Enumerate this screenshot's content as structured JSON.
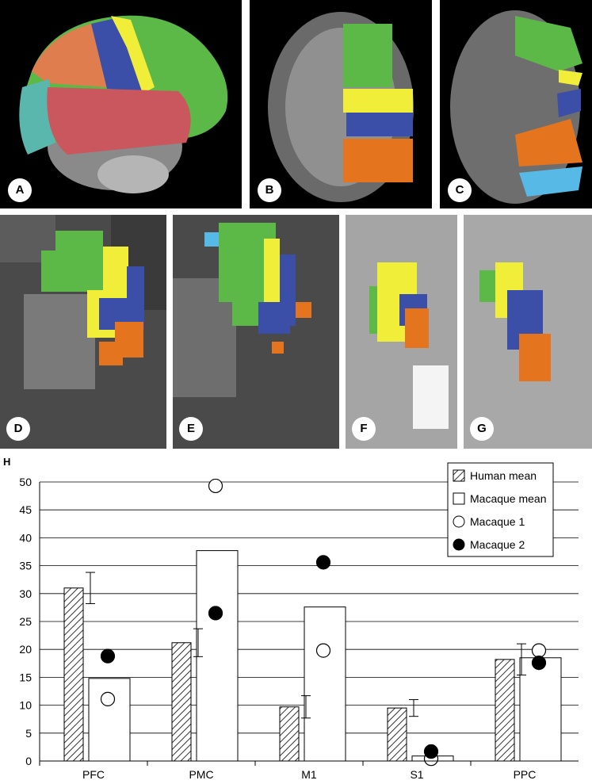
{
  "panels": {
    "A": "A",
    "B": "B",
    "C": "C",
    "D": "D",
    "E": "E",
    "F": "F",
    "G": "G"
  },
  "region_colors": {
    "PFC": "#5cb847",
    "PMC": "#f1ee3a",
    "M1": "#3c4fa8",
    "S1": "#e5741f",
    "PPC": "#56b9e6",
    "temporal": "#c9575d",
    "occipital": "#5ab7ad",
    "frontal_pole": "#e07d4f"
  },
  "chart_label": "H",
  "chart_data": {
    "type": "bar",
    "categories": [
      "PFC",
      "PMC",
      "M1",
      "S1",
      "PPC"
    ],
    "ylim": [
      0,
      50
    ],
    "yticks": [
      0,
      5,
      10,
      15,
      20,
      25,
      30,
      35,
      40,
      45,
      50
    ],
    "grid": true,
    "legend_position": "top-right",
    "series": [
      {
        "name": "Human mean",
        "style": "hatched",
        "values": [
          31,
          21.2,
          9.7,
          9.5,
          18.2
        ],
        "error": [
          2.8,
          2.5,
          2.0,
          1.5,
          2.8
        ]
      },
      {
        "name": "Macaque mean",
        "style": "open",
        "values": [
          14.8,
          37.7,
          27.6,
          0.9,
          18.5
        ]
      },
      {
        "name": "Macaque 1",
        "style": "open-circle",
        "values": [
          11.1,
          49.3,
          19.8,
          0.4,
          19.8
        ]
      },
      {
        "name": "Macaque 2",
        "style": "filled-circle",
        "values": [
          18.8,
          26.5,
          35.6,
          1.7,
          17.6
        ]
      }
    ]
  }
}
